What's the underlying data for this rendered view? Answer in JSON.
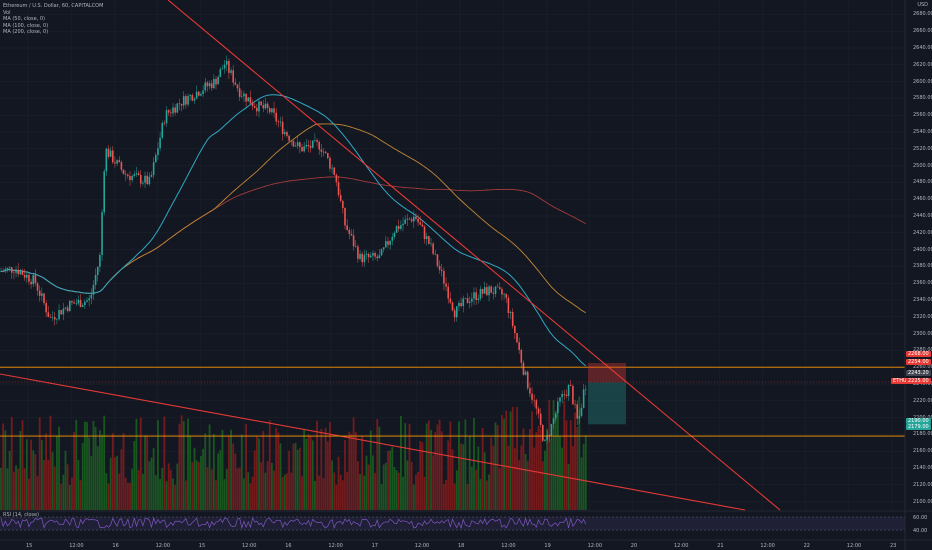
{
  "legend": {
    "symbol": "Ethereum / U.S. Dollar, 60, CAPITALCOM",
    "vol": "Vol",
    "ma50": "MA (50, close, 0)",
    "ma100": "MA (100, close, 0)",
    "ma200": "MA (200, close, 0)"
  },
  "rsi_label": "RSI (14, close)",
  "currency": "USD",
  "price_axis": [
    "2680.00",
    "2660.00",
    "2640.00",
    "2620.00",
    "2600.00",
    "2580.00",
    "2560.00",
    "2540.00",
    "2520.00",
    "2500.00",
    "2480.00",
    "2460.00",
    "2440.00",
    "2420.00",
    "2400.00",
    "2380.00",
    "2360.00",
    "2340.00",
    "2320.00",
    "2300.00",
    "2280.00",
    "2260.00",
    "2240.00",
    "2220.00",
    "2200.00",
    "2180.00",
    "2160.00",
    "2140.00",
    "2120.00",
    "2100.00"
  ],
  "time_axis": [
    "15",
    "12:00",
    "16",
    "12:00",
    "15",
    "12:00",
    "16",
    "12:00",
    "17",
    "12:00",
    "18",
    "12:00",
    "19",
    "12:00",
    "20",
    "12:00",
    "21",
    "12:00",
    "22",
    "12:00",
    "23"
  ],
  "rsi_axis": [
    "60.00",
    "40.00"
  ],
  "price_tags": {
    "top_red": "2268.00",
    "red2": "2254.00",
    "current_dark": "2243.20",
    "current_red": "2225.00",
    "ethusd_label": "ETHUSD",
    "green": "2190.00",
    "support": "2179.00"
  },
  "colors": {
    "background": "#131722",
    "up": "#26a69a",
    "down": "#ef5350",
    "ma50": "#2fa9c4",
    "ma100": "#c28735",
    "ma200": "#a33b3b",
    "trendline": "#e53935",
    "horizontal": "#ff9800",
    "vol_up": "#1b5e20",
    "vol_down": "#7f1d1d",
    "rsi_line": "#7e57c2"
  },
  "chart_data": {
    "type": "candlestick",
    "price_range": [
      2090,
      2690
    ],
    "horizontal_levels": [
      2260,
      2178
    ],
    "position_box": {
      "entry": 2242,
      "stop": 2265,
      "target": 2192
    }
  }
}
